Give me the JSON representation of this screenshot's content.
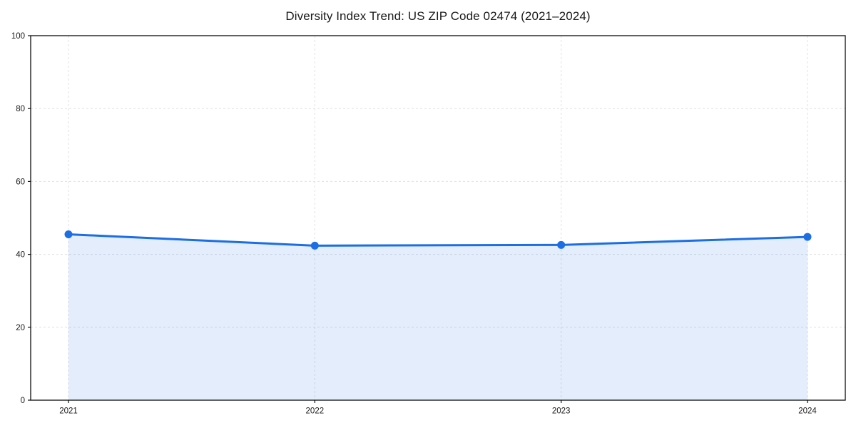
{
  "title": "Diversity Index Trend: US ZIP Code 02474 (2021–2024)",
  "chart_data": {
    "type": "area",
    "title": "Diversity Index Trend: US ZIP Code 02474 (2021–2024)",
    "categories": [
      "2021",
      "2022",
      "2023",
      "2024"
    ],
    "series": [
      {
        "name": "Diversity Index",
        "values": [
          45.5,
          42.4,
          42.6,
          44.8
        ]
      }
    ],
    "xlabel": "",
    "ylabel": "",
    "ylim": [
      0,
      100
    ],
    "yticks": [
      0,
      20,
      40,
      60,
      80,
      100
    ],
    "grid": true,
    "grid_style": "dashed",
    "legend_position": "none",
    "colors": {
      "line": "#1b6ee3",
      "marker": "#1b6ee3",
      "fill": "rgba(27,110,227,0.12)",
      "grid": "#e0e0e0",
      "spine": "#0d0d0d",
      "tick_text": "#1a1a1a"
    }
  }
}
